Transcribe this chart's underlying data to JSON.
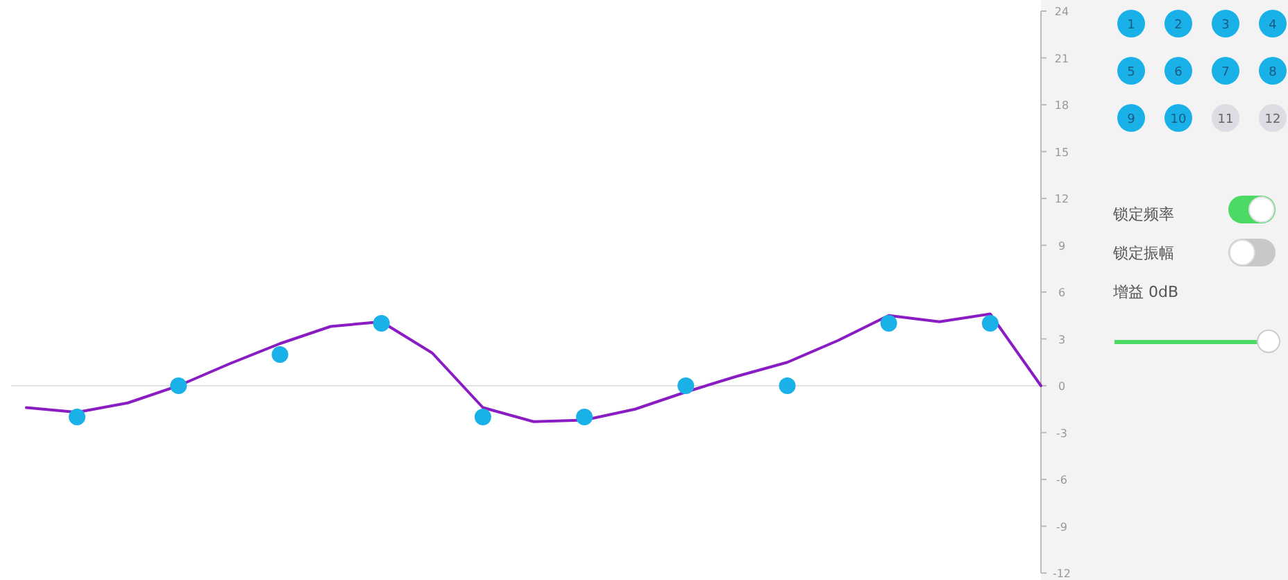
{
  "chart_data": {
    "type": "line",
    "categories": [
      null,
      null,
      null,
      null,
      null,
      null,
      null,
      null,
      null,
      null,
      null,
      null,
      null,
      null,
      null,
      null,
      null,
      null,
      null,
      null,
      null
    ],
    "ylim": [
      -12,
      24
    ],
    "yticks": [
      24,
      21,
      18,
      15,
      12,
      9,
      6,
      3,
      0,
      -3,
      -6,
      -9,
      -12
    ],
    "tick_labels": "y",
    "series": [
      {
        "color": "#8a1cc4",
        "values": [
          -1.4,
          -1.7,
          -1.1,
          0,
          1.4,
          2.7,
          3.8,
          4.1,
          2.1,
          -1.4,
          -2.3,
          -2.2,
          -1.5,
          -0.4,
          0.6,
          1.5,
          2.9,
          4.5,
          4.1,
          4.6,
          0
        ]
      },
      {
        "type": "scatter",
        "color": "#1ab0e8",
        "marker": "circle",
        "values": [
          null,
          -2,
          null,
          0,
          null,
          2,
          null,
          4,
          null,
          -2,
          null,
          -2,
          null,
          0,
          null,
          0,
          null,
          4,
          null,
          4,
          null
        ]
      }
    ],
    "annotations": [
      "1",
      "2",
      "3",
      "4",
      "5",
      "6",
      "7",
      "8",
      "9",
      "10",
      "11",
      "12",
      "锁定频率",
      "锁定振幅",
      "增益 0dB"
    ]
  }
}
